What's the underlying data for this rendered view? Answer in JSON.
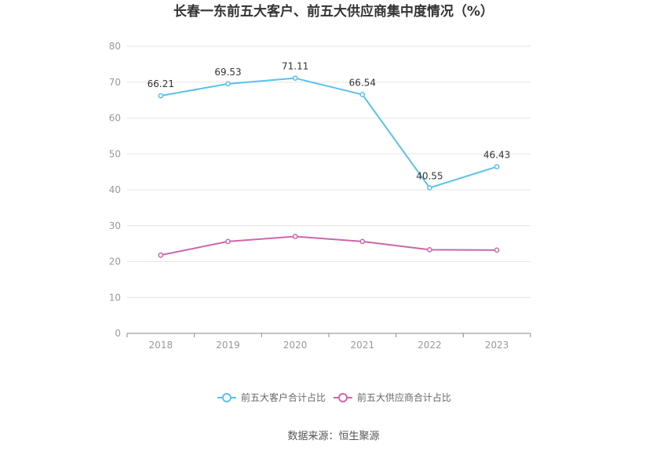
{
  "chart_data": {
    "type": "line",
    "title": "长春一东前五大客户、前五大供应商集中度情况（%）",
    "categories": [
      "2018",
      "2019",
      "2020",
      "2021",
      "2022",
      "2023"
    ],
    "ylim": [
      0,
      80
    ],
    "yticks": [
      "0",
      "10",
      "20",
      "30",
      "40",
      "50",
      "60",
      "70",
      "80"
    ],
    "grid": true,
    "legend_position": "bottom",
    "series": [
      {
        "name": "前五大客户合计占比",
        "color": "#5bc0eb",
        "values": [
          66.21,
          69.53,
          71.11,
          66.54,
          40.55,
          46.43
        ],
        "labels": [
          "66.21",
          "69.53",
          "71.11",
          "66.54",
          "40.55",
          "46.43"
        ]
      },
      {
        "name": "前五大供应商合计占比",
        "color": "#cc66aa",
        "values": [
          21.8,
          25.6,
          27.0,
          25.6,
          23.3,
          23.2
        ]
      }
    ],
    "source": "数据来源：恒生聚源"
  }
}
